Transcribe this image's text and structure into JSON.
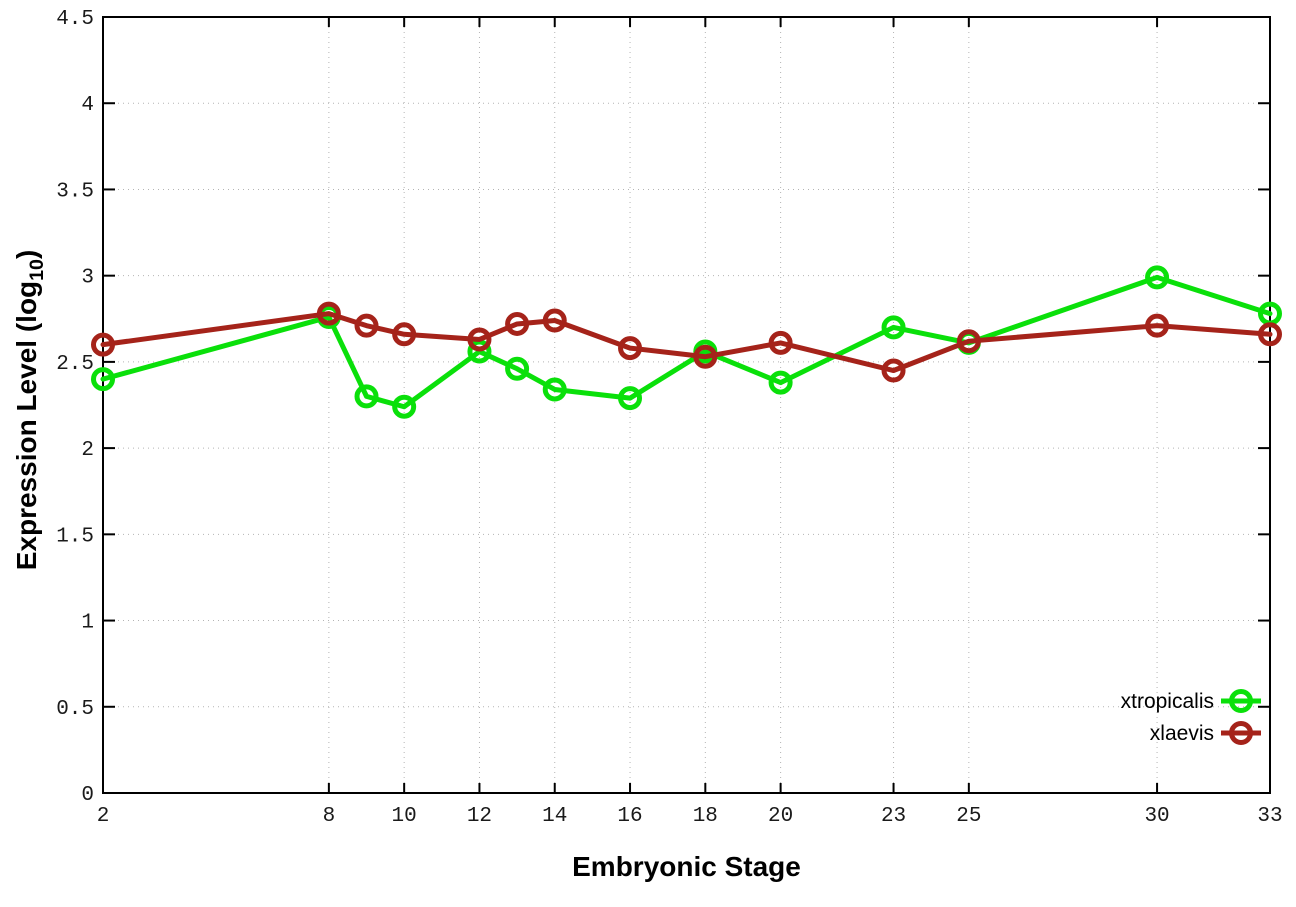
{
  "chart_data": {
    "type": "line",
    "title": "",
    "xlabel": "Embryonic Stage",
    "ylabel": "Expression Level (log10)",
    "ylabel_parts": {
      "main": "Expression Level (log",
      "sub": "10",
      "end": ")"
    },
    "x": [
      2,
      8,
      9,
      10,
      12,
      13,
      14,
      16,
      18,
      20,
      23,
      25,
      30,
      33
    ],
    "xticks": [
      2,
      8,
      10,
      12,
      14,
      16,
      18,
      20,
      23,
      25,
      30,
      33
    ],
    "xtick_labels": [
      "2",
      "8",
      "10",
      "12",
      "14",
      "16",
      "18",
      "20",
      "23",
      "25",
      "30",
      "33"
    ],
    "yticks": [
      0,
      0.5,
      1,
      1.5,
      2,
      2.5,
      3,
      3.5,
      4,
      4.5
    ],
    "ytick_labels": [
      "0",
      "0.5",
      "1",
      "1.5",
      "2",
      "2.5",
      "3",
      "3.5",
      "4",
      "4.5"
    ],
    "xlim": [
      2,
      33
    ],
    "ylim": [
      0,
      4.5
    ],
    "grid": true,
    "legend_position": "inside-bottom-right",
    "series": [
      {
        "name": "xtropicalis",
        "color": "#0ae00a",
        "values": [
          2.4,
          2.76,
          2.3,
          2.24,
          2.56,
          2.46,
          2.34,
          2.29,
          2.56,
          2.38,
          2.7,
          2.61,
          2.99,
          2.78
        ]
      },
      {
        "name": "xlaevis",
        "color": "#a5231a",
        "values": [
          2.6,
          2.78,
          2.71,
          2.66,
          2.63,
          2.72,
          2.74,
          2.58,
          2.53,
          2.61,
          2.45,
          2.62,
          2.71,
          2.66
        ]
      }
    ],
    "colors": {
      "background": "#ffffff",
      "border": "#000000",
      "grid": "#b4b4b4",
      "tick_text": "#1a1a1a"
    }
  }
}
